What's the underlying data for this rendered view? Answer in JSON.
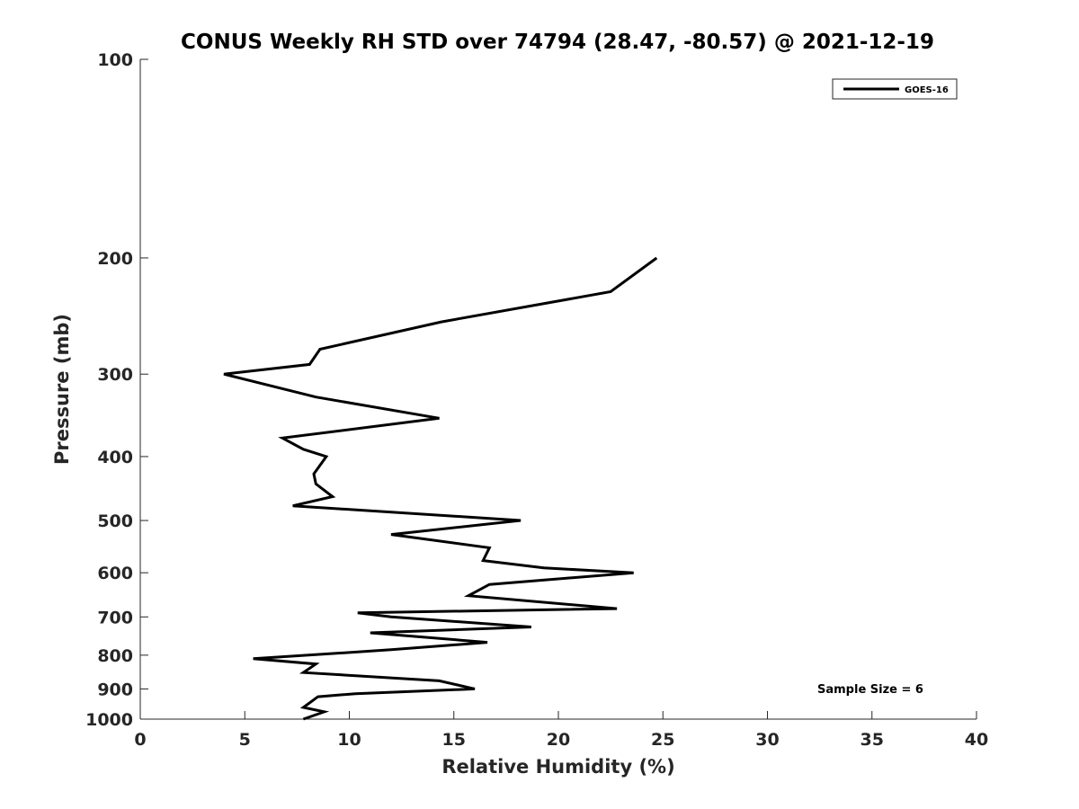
{
  "chart_data": {
    "type": "line",
    "title": "CONUS Weekly RH STD over 74794 (28.47, -80.57) @ 2021-12-19",
    "xlabel": "Relative Humidity (%)",
    "ylabel": "Pressure (mb)",
    "xlim": [
      0,
      40
    ],
    "ylim": [
      100,
      1000
    ],
    "y_scale": "log",
    "y_reversed": true,
    "x_ticks": [
      0,
      5,
      10,
      15,
      20,
      25,
      30,
      35,
      40
    ],
    "y_ticks": [
      100,
      200,
      300,
      400,
      500,
      600,
      700,
      800,
      900,
      1000
    ],
    "grid": false,
    "legend_position": "top-right",
    "line_color": "#000000",
    "series": [
      {
        "name": "GOES-16",
        "points": [
          {
            "p": 200,
            "rh": 24.7
          },
          {
            "p": 225,
            "rh": 22.5
          },
          {
            "p": 250,
            "rh": 14.4
          },
          {
            "p": 275,
            "rh": 8.6
          },
          {
            "p": 290,
            "rh": 8.1
          },
          {
            "p": 300,
            "rh": 4.0
          },
          {
            "p": 325,
            "rh": 8.4
          },
          {
            "p": 350,
            "rh": 14.3
          },
          {
            "p": 375,
            "rh": 6.8
          },
          {
            "p": 390,
            "rh": 7.8
          },
          {
            "p": 400,
            "rh": 8.9
          },
          {
            "p": 425,
            "rh": 8.3
          },
          {
            "p": 440,
            "rh": 8.4
          },
          {
            "p": 460,
            "rh": 9.2
          },
          {
            "p": 475,
            "rh": 7.3
          },
          {
            "p": 500,
            "rh": 18.2
          },
          {
            "p": 525,
            "rh": 12.0
          },
          {
            "p": 550,
            "rh": 16.7
          },
          {
            "p": 575,
            "rh": 16.4
          },
          {
            "p": 590,
            "rh": 19.3
          },
          {
            "p": 600,
            "rh": 23.6
          },
          {
            "p": 625,
            "rh": 16.7
          },
          {
            "p": 650,
            "rh": 15.7
          },
          {
            "p": 680,
            "rh": 22.8
          },
          {
            "p": 690,
            "rh": 10.4
          },
          {
            "p": 700,
            "rh": 12.0
          },
          {
            "p": 725,
            "rh": 18.7
          },
          {
            "p": 740,
            "rh": 11.0
          },
          {
            "p": 765,
            "rh": 16.6
          },
          {
            "p": 785,
            "rh": 12.0
          },
          {
            "p": 810,
            "rh": 5.4
          },
          {
            "p": 825,
            "rh": 8.4
          },
          {
            "p": 850,
            "rh": 7.8
          },
          {
            "p": 875,
            "rh": 14.3
          },
          {
            "p": 900,
            "rh": 16.0
          },
          {
            "p": 915,
            "rh": 10.3
          },
          {
            "p": 925,
            "rh": 8.5
          },
          {
            "p": 960,
            "rh": 7.8
          },
          {
            "p": 975,
            "rh": 8.8
          },
          {
            "p": 1000,
            "rh": 7.8
          }
        ]
      }
    ],
    "annotation": "Sample Size = 6"
  }
}
